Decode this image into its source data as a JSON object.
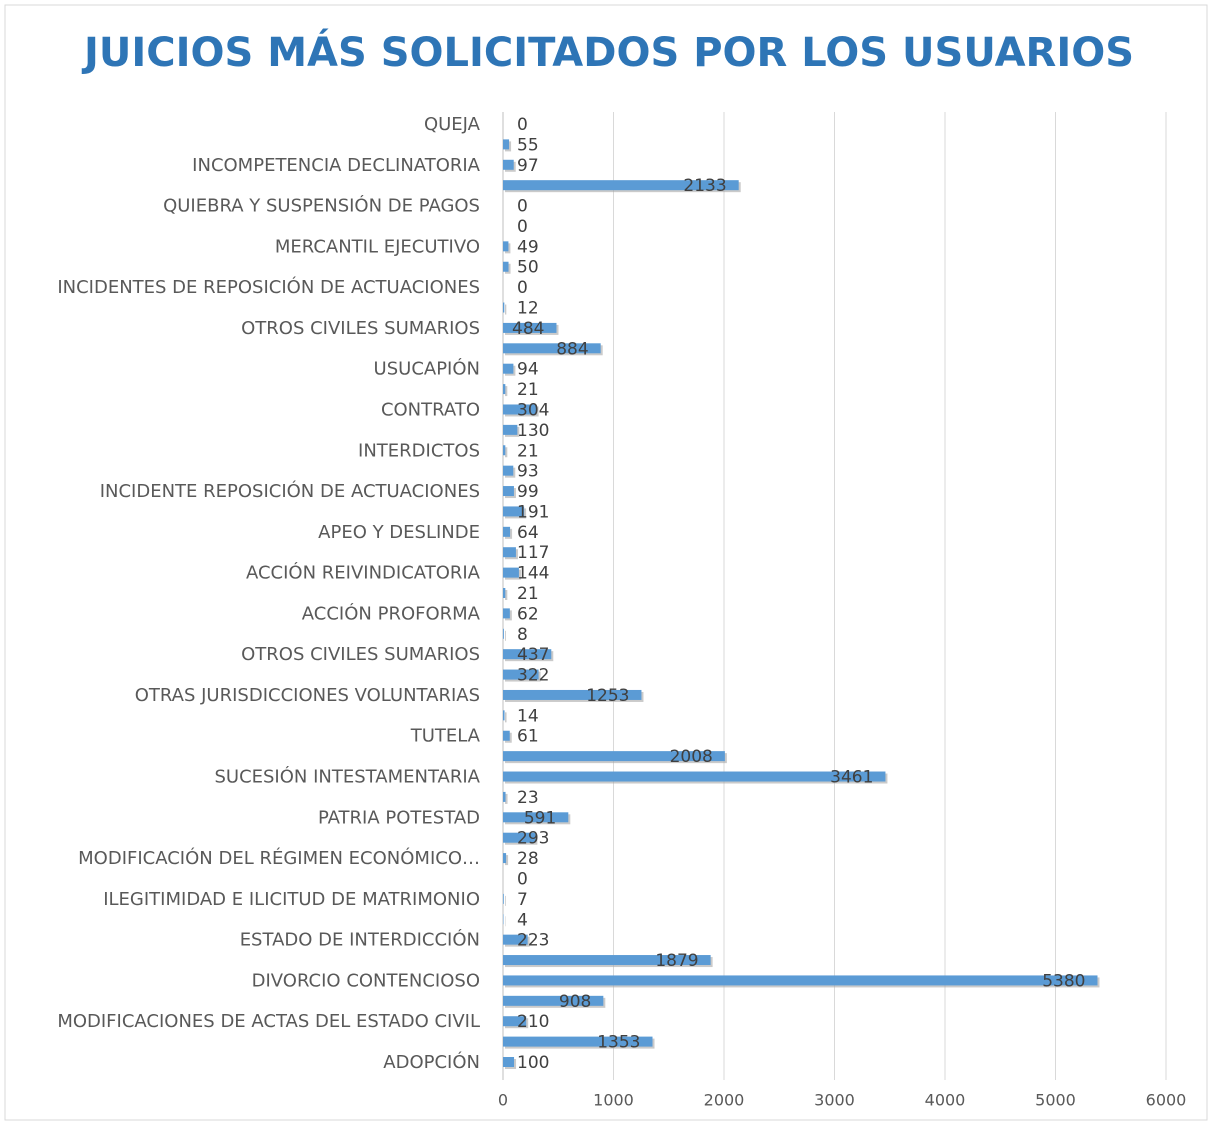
{
  "chart_data": {
    "type": "barh",
    "title": "JUICIOS MÁS SOLICITADOS POR LOS USUARIOS",
    "categories": [
      "QUEJA",
      null,
      "INCOMPETENCIA DECLINATORIA",
      null,
      "QUIEBRA Y SUSPENSIÓN DE PAGOS",
      null,
      "MERCANTIL EJECUTIVO",
      null,
      "INCIDENTES DE REPOSICIÓN DE ACTUACIONES",
      null,
      "OTROS CIVILES SUMARIOS",
      null,
      "USUCAPIÓN",
      null,
      "CONTRATO",
      null,
      "INTERDICTOS",
      null,
      "INCIDENTE REPOSICIÓN DE ACTUACIONES",
      null,
      "APEO Y DESLINDE",
      null,
      "ACCIÓN REIVINDICATORIA",
      null,
      "ACCIÓN PROFORMA",
      null,
      "OTROS CIVILES SUMARIOS",
      null,
      "OTRAS JURISDICCIONES VOLUNTARIAS",
      null,
      "TUTELA",
      null,
      "SUCESIÓN INTESTAMENTARIA",
      null,
      "PATRIA POTESTAD",
      null,
      "MODIFICACIÓN DEL RÉGIMEN ECONÓMICO…",
      null,
      "ILEGITIMIDAD E ILICITUD DE MATRIMONIO",
      null,
      "ESTADO DE INTERDICCIÓN",
      null,
      "DIVORCIO CONTENCIOSO",
      null,
      "MODIFICACIONES DE ACTAS DEL ESTADO CIVIL",
      null,
      "ADOPCIÓN"
    ],
    "values": [
      0,
      55,
      97,
      2133,
      0,
      0,
      49,
      50,
      0,
      12,
      484,
      884,
      94,
      21,
      304,
      130,
      21,
      93,
      99,
      191,
      64,
      117,
      144,
      21,
      62,
      8,
      437,
      322,
      1253,
      14,
      61,
      2008,
      3461,
      23,
      591,
      293,
      28,
      0,
      7,
      4,
      223,
      1879,
      5380,
      908,
      210,
      1353,
      100
    ],
    "color": "#5b9bd5",
    "xlim": [
      0,
      6000
    ],
    "xticks": [
      0,
      1000,
      2000,
      3000,
      4000,
      5000,
      6000
    ],
    "grid": true
  }
}
